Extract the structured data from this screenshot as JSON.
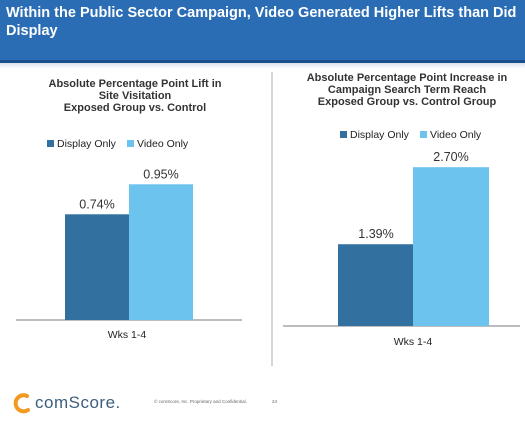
{
  "header": {
    "title": "Within the Public Sector Campaign, Video Generated Higher Lifts than Did Display"
  },
  "colors": {
    "header_bg": "#2a6db5",
    "display_only": "#31709f",
    "video_only": "#6cc3ee"
  },
  "chart_data": [
    {
      "type": "bar",
      "title_lines": [
        "Absolute Percentage Point Lift in",
        "Site Visitation",
        "Exposed Group vs. Control"
      ],
      "categories": [
        "Wks 1-4"
      ],
      "series": [
        {
          "name": "Display Only",
          "values": [
            0.74
          ],
          "labels": [
            "0.74%"
          ]
        },
        {
          "name": "Video Only",
          "values": [
            0.95
          ],
          "labels": [
            "0.95%"
          ]
        }
      ],
      "ylim": [
        0,
        1.4
      ],
      "grid": false,
      "legend_position": "top"
    },
    {
      "type": "bar",
      "title_lines": [
        "Absolute Percentage Point Increase in",
        "Campaign Search Term Reach",
        "Exposed Group vs. Control Group"
      ],
      "categories": [
        "Wks 1-4"
      ],
      "series": [
        {
          "name": "Display Only",
          "values": [
            1.39
          ],
          "labels": [
            "1.39%"
          ]
        },
        {
          "name": "Video Only",
          "values": [
            2.7
          ],
          "labels": [
            "2.70%"
          ]
        }
      ],
      "ylim": [
        0,
        3.4
      ],
      "grid": false,
      "legend_position": "top"
    }
  ],
  "footer": {
    "logo_text": "comScore.",
    "note": "© comScore, Inc.  Proprietary and Confidential.",
    "page_number": "24"
  }
}
